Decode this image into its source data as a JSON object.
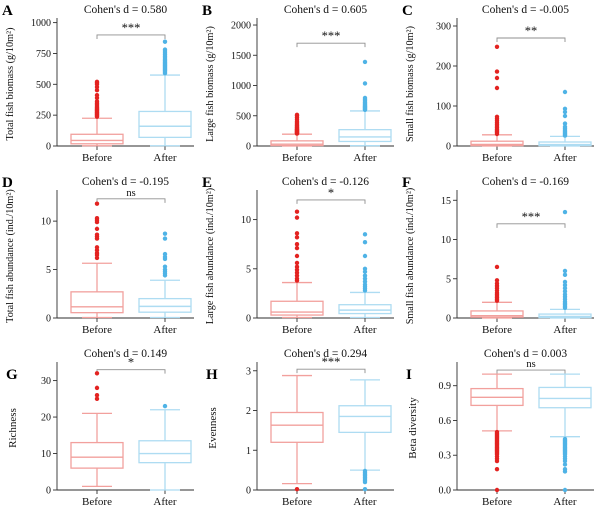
{
  "figure": {
    "background": "#ffffff",
    "colors": {
      "before_point": "#e32321",
      "before_box": "#f2a09d",
      "after_point": "#4fb3e6",
      "after_box": "#aedcf2",
      "box_fill": "#ffffff",
      "bracket": "#8f8f8f",
      "sig_text": "#3c3c3c",
      "axis": "#2e2e2e",
      "text": "#000000"
    },
    "x_categories": [
      "Before",
      "After"
    ]
  },
  "chart_data": [
    {
      "type": "box",
      "panel_label": "A",
      "title": "Cohen's d = 0.580",
      "significance": "***",
      "ylabel": "Total fish biomass (g/10m²)",
      "xlabel": "",
      "ylim": [
        0,
        1005
      ],
      "ytick_values": [
        0,
        250,
        500,
        750,
        1000
      ],
      "ytick_labels": [
        "0",
        "250",
        "500",
        "750",
        "1000"
      ],
      "bracket_y": 900,
      "categories": [
        "Before",
        "After"
      ],
      "series": [
        {
          "name": "Before",
          "group": "before",
          "whisker_low": 2,
          "q1": 18,
          "median": 45,
          "q3": 95,
          "whisker_high": 225,
          "outliers": [
            238,
            245,
            252,
            258,
            264,
            270,
            277,
            284,
            291,
            298,
            306,
            315,
            325,
            336,
            348,
            362,
            390,
            412,
            452,
            478,
            500,
            512,
            520
          ]
        },
        {
          "name": "After",
          "group": "after",
          "whisker_low": 2,
          "q1": 70,
          "median": 160,
          "q3": 280,
          "whisker_high": 575,
          "outliers": [
            590,
            600,
            610,
            618,
            626,
            634,
            642,
            650,
            658,
            666,
            674,
            682,
            692,
            702,
            714,
            726,
            740,
            755,
            770,
            782,
            845
          ]
        }
      ]
    },
    {
      "type": "box",
      "panel_label": "B",
      "title": "Cohen's d = 0.605",
      "significance": "***",
      "ylabel": "Large fish biomass (g/10m²)",
      "xlabel": "",
      "ylim": [
        0,
        2050
      ],
      "ytick_values": [
        0,
        500,
        1000,
        1500,
        2000
      ],
      "ytick_labels": [
        "0",
        "500",
        "1000",
        "1500",
        "2000"
      ],
      "bracket_y": 1700,
      "categories": [
        "Before",
        "After"
      ],
      "series": [
        {
          "name": "Before",
          "group": "before",
          "whisker_low": 0,
          "q1": 8,
          "median": 30,
          "q3": 85,
          "whisker_high": 195,
          "outliers": [
            205,
            212,
            220,
            228,
            236,
            244,
            252,
            261,
            270,
            280,
            291,
            303,
            316,
            330,
            346,
            364,
            385,
            410,
            440,
            470,
            500,
            515
          ]
        },
        {
          "name": "After",
          "group": "after",
          "whisker_low": 5,
          "q1": 75,
          "median": 150,
          "q3": 270,
          "whisker_high": 580,
          "outliers": [
            598,
            610,
            622,
            634,
            646,
            658,
            672,
            688,
            705,
            725,
            748,
            772,
            795,
            1035,
            1390
          ]
        }
      ]
    },
    {
      "type": "box",
      "panel_label": "C",
      "title": "Cohen's d = -0.005",
      "significance": "**",
      "ylabel": "Small fish biomass (g/10m²)",
      "xlabel": "",
      "ylim": [
        0,
        310
      ],
      "ytick_values": [
        0,
        100,
        200,
        300
      ],
      "ytick_labels": [
        "0",
        "100",
        "200",
        "300"
      ],
      "bracket_y": 270,
      "categories": [
        "Before",
        "After"
      ],
      "series": [
        {
          "name": "Before",
          "group": "before",
          "whisker_low": 0,
          "q1": 1,
          "median": 4,
          "q3": 12,
          "whisker_high": 28,
          "outliers": [
            30,
            33,
            36,
            39,
            42,
            46,
            50,
            54,
            58,
            63,
            68,
            73,
            145,
            170,
            186,
            248
          ]
        },
        {
          "name": "After",
          "group": "after",
          "whisker_low": 0,
          "q1": 1,
          "median": 3.5,
          "q3": 10,
          "whisker_high": 24,
          "outliers": [
            26,
            28,
            31,
            34,
            37,
            40,
            44,
            48,
            56,
            75,
            85,
            93,
            135
          ]
        }
      ]
    },
    {
      "type": "box",
      "panel_label": "D",
      "title": "Cohen's d = -0.195",
      "significance": "ns",
      "ylabel": "Total fish abundance (ind./10m²)",
      "xlabel": "",
      "ylim": [
        0,
        12.8
      ],
      "ytick_values": [
        0,
        5,
        10
      ],
      "ytick_labels": [
        "0",
        "5",
        "10"
      ],
      "bracket_y": 12.3,
      "categories": [
        "Before",
        "After"
      ],
      "series": [
        {
          "name": "Before",
          "group": "before",
          "whisker_low": 0.05,
          "q1": 0.55,
          "median": 1.15,
          "q3": 2.7,
          "whisker_high": 5.65,
          "outliers": [
            6.2,
            6.5,
            6.7,
            7.0,
            7.3,
            8.2,
            8.4,
            8.6,
            9.2,
            9.9,
            10.1,
            10.3,
            11.8
          ]
        },
        {
          "name": "After",
          "group": "after",
          "whisker_low": 0.05,
          "q1": 0.6,
          "median": 1.2,
          "q3": 2.0,
          "whisker_high": 3.9,
          "outliers": [
            4.4,
            4.6,
            4.8,
            5.0,
            5.3,
            6.1,
            6.3,
            6.6,
            8.2,
            8.7
          ]
        }
      ]
    },
    {
      "type": "box",
      "panel_label": "E",
      "title": "Cohen's d = -0.126",
      "significance": "*",
      "ylabel": "Large fish abundance  (ind./10m²)",
      "xlabel": "",
      "ylim": [
        0,
        12.6
      ],
      "ytick_values": [
        0,
        5,
        10
      ],
      "ytick_labels": [
        "0",
        "5",
        "10"
      ],
      "bracket_y": 12.0,
      "categories": [
        "Before",
        "After"
      ],
      "series": [
        {
          "name": "Before",
          "group": "before",
          "whisker_low": 0.05,
          "q1": 0.3,
          "median": 0.6,
          "q3": 1.7,
          "whisker_high": 3.6,
          "outliers": [
            3.8,
            4.0,
            4.3,
            4.6,
            4.9,
            5.2,
            5.6,
            6.3,
            7.1,
            7.5,
            8.2,
            8.6,
            10.2,
            10.8
          ]
        },
        {
          "name": "After",
          "group": "after",
          "whisker_low": 0.05,
          "q1": 0.45,
          "median": 0.8,
          "q3": 1.35,
          "whisker_high": 2.6,
          "outliers": [
            2.8,
            3.0,
            3.2,
            3.4,
            3.7,
            4.0,
            4.3,
            4.7,
            5.0,
            6.3,
            7.7,
            8.5
          ]
        }
      ]
    },
    {
      "type": "box",
      "panel_label": "F",
      "title": "Cohen's d = -0.169",
      "significance": "***",
      "ylabel": "Small fish abundance  (ind./10m²)",
      "xlabel": "",
      "ylim": [
        0,
        15.8
      ],
      "ytick_values": [
        0,
        5,
        10,
        15
      ],
      "ytick_labels": [
        "0",
        "5",
        "10",
        "15"
      ],
      "bracket_y": 12.0,
      "categories": [
        "Before",
        "After"
      ],
      "series": [
        {
          "name": "Before",
          "group": "before",
          "whisker_low": 0,
          "q1": 0.1,
          "median": 0.3,
          "q3": 0.9,
          "whisker_high": 2.0,
          "outliers": [
            2.2,
            2.4,
            2.6,
            2.8,
            3.0,
            3.2,
            3.5,
            3.8,
            4.1,
            4.4,
            4.8,
            6.5
          ]
        },
        {
          "name": "After",
          "group": "after",
          "whisker_low": 0,
          "q1": 0.05,
          "median": 0.2,
          "q3": 0.5,
          "whisker_high": 1.1,
          "outliers": [
            1.3,
            1.5,
            1.7,
            1.9,
            2.1,
            2.4,
            2.7,
            3.0,
            3.4,
            3.8,
            4.2,
            4.6,
            5.5,
            6.0,
            13.5
          ]
        }
      ]
    },
    {
      "type": "box",
      "panel_label": "G",
      "title": "Cohen's d = 0.149",
      "significance": "*",
      "ylabel": "Richness",
      "xlabel": "",
      "ylim": [
        0,
        34
      ],
      "ytick_values": [
        0,
        10,
        20,
        30
      ],
      "ytick_labels": [
        "0",
        "10",
        "20",
        "30"
      ],
      "bracket_y": 33,
      "categories": [
        "Before",
        "After"
      ],
      "series": [
        {
          "name": "Before",
          "group": "before",
          "whisker_low": 1,
          "q1": 6,
          "median": 9,
          "q3": 13,
          "whisker_high": 21,
          "outliers": [
            25,
            26,
            28,
            32
          ]
        },
        {
          "name": "After",
          "group": "after",
          "whisker_low": 0,
          "q1": 7.5,
          "median": 10,
          "q3": 13.5,
          "whisker_high": 22,
          "outliers": [
            23
          ]
        }
      ]
    },
    {
      "type": "box",
      "panel_label": "H",
      "title": "Cohen's d = 0.294",
      "significance": "***",
      "ylabel": "Evenness",
      "xlabel": "",
      "ylim": [
        0,
        3.12
      ],
      "ytick_values": [
        0,
        1,
        2,
        3
      ],
      "ytick_labels": [
        "0",
        "1",
        "2",
        "3"
      ],
      "bracket_y": 3.04,
      "categories": [
        "Before",
        "After"
      ],
      "series": [
        {
          "name": "Before",
          "group": "before",
          "whisker_low": 0.16,
          "q1": 1.2,
          "median": 1.63,
          "q3": 1.95,
          "whisker_high": 2.88,
          "outliers": [
            0.02
          ]
        },
        {
          "name": "After",
          "group": "after",
          "whisker_low": 0.5,
          "q1": 1.45,
          "median": 1.85,
          "q3": 2.12,
          "whisker_high": 2.77,
          "outliers": [
            0.02,
            0.2,
            0.24,
            0.28,
            0.32,
            0.36,
            0.4,
            0.44,
            0.48
          ]
        }
      ]
    },
    {
      "type": "box",
      "panel_label": "I",
      "title": "Cohen's d = 0.003",
      "significance": "ns",
      "ylabel": "Beta diversity",
      "xlabel": "",
      "ylim": [
        0,
        1.07
      ],
      "ytick_values": [
        0,
        0.3,
        0.6,
        0.9
      ],
      "ytick_labels": [
        "0.0",
        "0.3",
        "0.6",
        "0.9"
      ],
      "bracket_y": 1.035,
      "categories": [
        "Before",
        "After"
      ],
      "series": [
        {
          "name": "Before",
          "group": "before",
          "whisker_low": 0.51,
          "q1": 0.73,
          "median": 0.8,
          "q3": 0.875,
          "whisker_high": 1.0,
          "outliers": [
            0.0,
            0.18,
            0.25,
            0.27,
            0.29,
            0.31,
            0.32,
            0.33,
            0.34,
            0.35,
            0.36,
            0.37,
            0.38,
            0.39,
            0.4,
            0.41,
            0.42,
            0.43,
            0.44,
            0.45,
            0.46,
            0.47,
            0.48,
            0.49,
            0.5
          ]
        },
        {
          "name": "After",
          "group": "after",
          "whisker_low": 0.46,
          "q1": 0.71,
          "median": 0.79,
          "q3": 0.885,
          "whisker_high": 1.0,
          "outliers": [
            0.0,
            0.16,
            0.18,
            0.22,
            0.25,
            0.27,
            0.29,
            0.31,
            0.32,
            0.33,
            0.34,
            0.35,
            0.36,
            0.37,
            0.38,
            0.39,
            0.4,
            0.41,
            0.42,
            0.43,
            0.44
          ]
        }
      ]
    }
  ]
}
